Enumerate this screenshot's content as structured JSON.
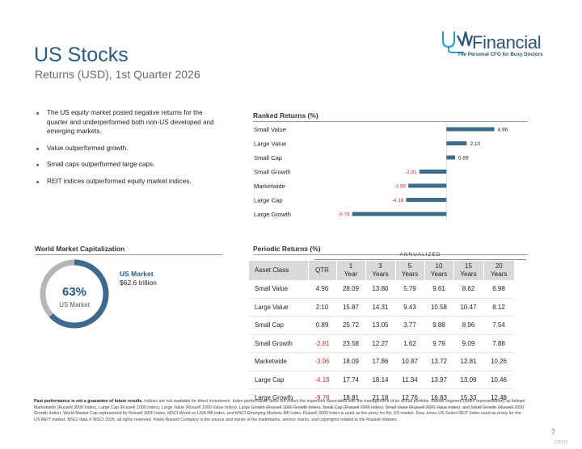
{
  "header": {
    "title": "US Stocks",
    "subtitle": "Returns (USD), 1st Quarter 2026",
    "logo_brand": "Financial",
    "logo_tagline": "The Personal CFO for Busy Doctors"
  },
  "bullets": [
    "The US equity market posted negative returns for the quarter and underperformed both non-US developed and emerging markets.",
    "Value outperformed growth.",
    "Small caps outperformed large caps.",
    "REIT indices outperformed equity market indices."
  ],
  "ranked": {
    "heading": "Ranked Returns (%)"
  },
  "world_market_cap": {
    "heading": "World Market Capitalization",
    "percent": "63%",
    "percent_value": 63,
    "center_label": "US Market",
    "side_label": "US Market",
    "side_value": "$62.6 trillion",
    "colors": {
      "us": "#3d6b8e",
      "rest": "#b5b5b5"
    }
  },
  "periodic": {
    "heading": "Periodic Returns (%)",
    "annualized_label": "ANNUALIZED",
    "headers": [
      {
        "l1": "Asset Class",
        "l2": ""
      },
      {
        "l1": "QTR",
        "l2": ""
      },
      {
        "l1": "1",
        "l2": "Year"
      },
      {
        "l1": "3",
        "l2": "Years"
      },
      {
        "l1": "5",
        "l2": "Years"
      },
      {
        "l1": "10",
        "l2": "Years"
      },
      {
        "l1": "15",
        "l2": "Years"
      },
      {
        "l1": "20",
        "l2": "Years"
      }
    ],
    "rows": [
      {
        "name": "Small Value",
        "vals": [
          "4.96",
          "28.09",
          "13.80",
          "5.79",
          "9.61",
          "8.62",
          "6.98"
        ]
      },
      {
        "name": "Large Value",
        "vals": [
          "2.10",
          "15.87",
          "14.31",
          "9.43",
          "10.58",
          "10.47",
          "8.12"
        ]
      },
      {
        "name": "Small Cap",
        "vals": [
          "0.89",
          "25.72",
          "13.05",
          "3.77",
          "9.88",
          "8.96",
          "7.54"
        ]
      },
      {
        "name": "Small Growth",
        "vals": [
          "-2.81",
          "23.58",
          "12.27",
          "1.62",
          "9.79",
          "9.09",
          "7.88"
        ]
      },
      {
        "name": "Marketwide",
        "vals": [
          "-3.96",
          "18.09",
          "17.86",
          "10.87",
          "13.72",
          "12.81",
          "10.26"
        ]
      },
      {
        "name": "Large Cap",
        "vals": [
          "-4.18",
          "17.74",
          "18.14",
          "11.34",
          "13.97",
          "13.09",
          "10.46"
        ]
      },
      {
        "name": "Large Growth",
        "vals": [
          "-9.78",
          "18.81",
          "21.18",
          "12.76",
          "16.83",
          "15.33",
          "12.48"
        ]
      }
    ]
  },
  "chart_data": {
    "type": "bar",
    "orientation": "horizontal",
    "title": "Ranked Returns (%)",
    "categories": [
      "Small Value",
      "Large Value",
      "Small Cap",
      "Small Growth",
      "Marketwide",
      "Large Cap",
      "Large Growth"
    ],
    "values": [
      4.96,
      2.1,
      0.89,
      -2.81,
      -3.96,
      -4.18,
      -9.78
    ],
    "labels": [
      "4.96",
      "2.10",
      "0.89",
      "-2.81",
      "-3.96",
      "-4.18",
      "-9.78"
    ],
    "xlim": [
      -10,
      5
    ],
    "bar_color": "#3d6b8e",
    "negative_label_color": "#c0392b",
    "positive_label_color": "#222222"
  },
  "footer": {
    "disclaimer_bold": "Past performance is not a guarantee of future results.",
    "disclaimer": "Indices are not available for direct investment. Index performance does not reflect the expenses associated with the management of an actual portfolio. Market segment (index representation) as follows: Marketwide (Russell 3000 Index), Large Cap (Russell 1000 Index), Large Value (Russell 1000 Value Index), Large Growth (Russell 1000 Growth Index), Small Cap (Russell 2000 Index), Small Value (Russell 2000 Value Index), and Small Growth (Russell 2000 Growth Index). World Market Cap represented by Russell 3000 Index, MSCI World ex USA IMI Index, and MSCI Emerging Markets IMI Index. Russell 3000 Index is used as the proxy for the US market. Dow Jones US Select REIT Index used as proxy for the US REIT market. MSCI data © MSCI 2026, all rights reserved. Frank Russell Company is the source and owner of the trademarks, service marks, and copyrights related to the Russell Indexes.",
    "page_number": "7",
    "doc_id": "135215"
  }
}
